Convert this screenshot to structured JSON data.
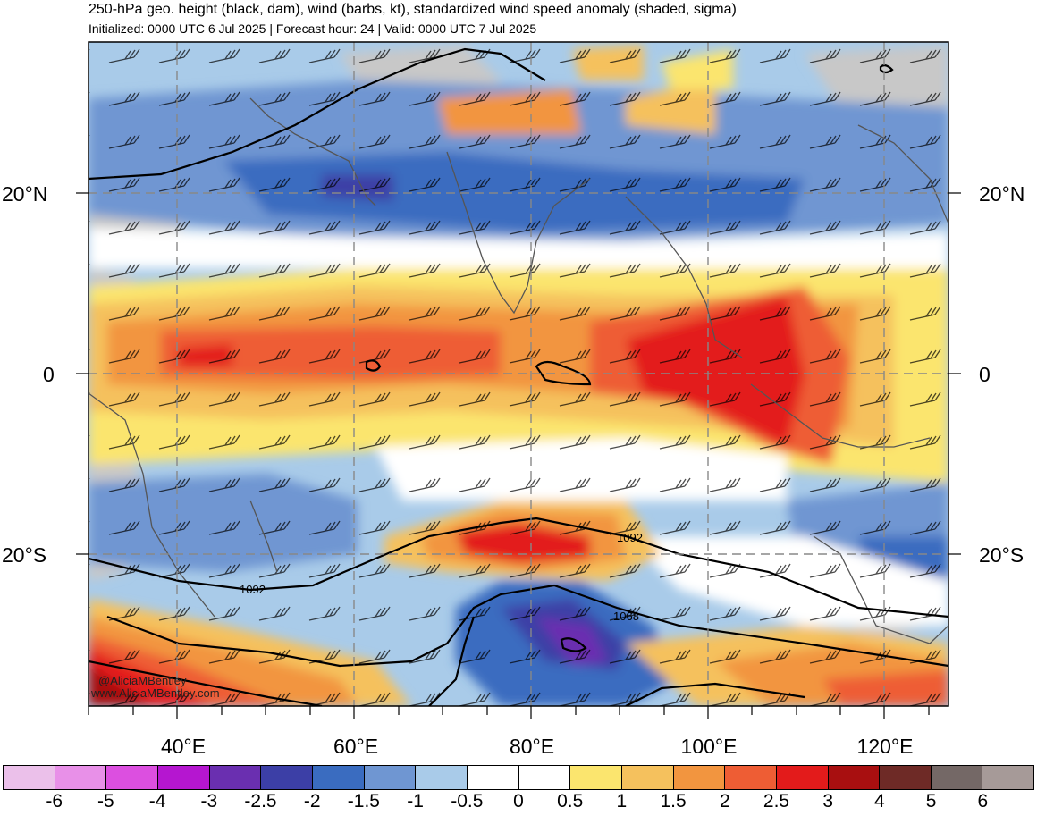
{
  "header": {
    "title": "250-hPa geo. height (black, dam), wind (barbs, kt), standardized wind speed anomaly (shaded, sigma)",
    "subtitle": "Initialized: 0000 UTC 6 Jul 2025 | Forecast hour: 24 | Valid: 0000 UTC 7 Jul 2025"
  },
  "map": {
    "lat_labels_left": [
      "20°N",
      "0",
      "20°S"
    ],
    "lat_labels_right": [
      "20°N",
      "0",
      "20°S"
    ],
    "lon_labels": [
      "40°E",
      "60°E",
      "80°E",
      "100°E",
      "120°E"
    ],
    "contour_labels": [
      "1092",
      "1092",
      "1068"
    ],
    "credit_handle": "@AliciaMBentley",
    "credit_url": "www.AliciaMBentley.com"
  },
  "colorbar": {
    "colors": [
      "#ebc0ea",
      "#e890e8",
      "#dc4fe0",
      "#b516d0",
      "#6a2fb0",
      "#3c3fa6",
      "#3a6cc0",
      "#6f96d2",
      "#a9cbe9",
      "#ffffff",
      "#ffffff",
      "#fbe56e",
      "#f5c15d",
      "#f2953f",
      "#ee5d34",
      "#e31b1b",
      "#a80f10",
      "#6e2a26",
      "#746866",
      "#a69a98"
    ],
    "labels": [
      "-6",
      "-5",
      "-4",
      "-3",
      "-2.5",
      "-2",
      "-1.5",
      "-1",
      "-0.5",
      "0",
      "0.5",
      "1",
      "1.5",
      "2",
      "2.5",
      "3",
      "4",
      "5",
      "6"
    ]
  }
}
